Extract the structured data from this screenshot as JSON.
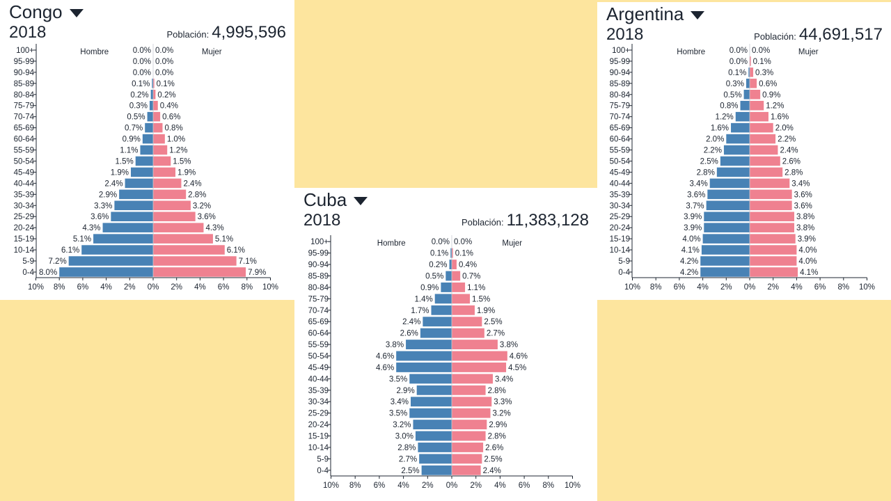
{
  "colors": {
    "male": "#4882b5",
    "female": "#ef8190",
    "background": "#fde59e",
    "axis": "#1c2430"
  },
  "labels": {
    "male": "Hombre",
    "female": "Mujer",
    "population": "Población:"
  },
  "ticks": [
    "10%",
    "8%",
    "6%",
    "4%",
    "2%",
    "0%",
    "2%",
    "4%",
    "6%",
    "8%",
    "10%"
  ],
  "panels": [
    {
      "country": "Congo",
      "year": "2018",
      "population": "4,995,596"
    },
    {
      "country": "Cuba",
      "year": "2018",
      "population": "11,383,128"
    },
    {
      "country": "Argentina",
      "year": "2018",
      "population": "44,691,517"
    }
  ],
  "chart_data": [
    {
      "type": "bar",
      "title": "Congo",
      "age_groups": [
        "100+",
        "95-99",
        "90-94",
        "85-89",
        "80-84",
        "75-79",
        "70-74",
        "65-69",
        "60-64",
        "55-59",
        "50-54",
        "45-49",
        "40-44",
        "35-39",
        "30-34",
        "25-29",
        "20-24",
        "15-19",
        "10-14",
        "5-9",
        "0-4"
      ],
      "series": [
        {
          "name": "Hombre",
          "values": [
            0.0,
            0.0,
            0.0,
            0.1,
            0.2,
            0.3,
            0.5,
            0.7,
            0.9,
            1.1,
            1.5,
            1.9,
            2.4,
            2.9,
            3.3,
            3.6,
            4.3,
            5.1,
            6.1,
            7.2,
            8.0
          ]
        },
        {
          "name": "Mujer",
          "values": [
            0.0,
            0.0,
            0.0,
            0.1,
            0.2,
            0.4,
            0.6,
            0.8,
            1.0,
            1.2,
            1.5,
            1.9,
            2.4,
            2.8,
            3.2,
            3.6,
            4.3,
            5.1,
            6.1,
            7.1,
            7.9
          ]
        }
      ],
      "xlim": [
        -10,
        10
      ]
    },
    {
      "type": "bar",
      "title": "Cuba",
      "age_groups": [
        "100+",
        "95-99",
        "90-94",
        "85-89",
        "80-84",
        "75-79",
        "70-74",
        "65-69",
        "60-64",
        "55-59",
        "50-54",
        "45-49",
        "40-44",
        "35-39",
        "30-34",
        "25-29",
        "20-24",
        "15-19",
        "10-14",
        "5-9",
        "0-4"
      ],
      "series": [
        {
          "name": "Hombre",
          "values": [
            0.0,
            0.1,
            0.2,
            0.5,
            0.9,
            1.4,
            1.7,
            2.4,
            2.6,
            3.8,
            4.6,
            4.6,
            3.5,
            2.9,
            3.4,
            3.5,
            3.2,
            3.0,
            2.8,
            2.7,
            2.5
          ]
        },
        {
          "name": "Mujer",
          "values": [
            0.0,
            0.1,
            0.4,
            0.7,
            1.1,
            1.5,
            1.9,
            2.5,
            2.7,
            3.8,
            4.6,
            4.5,
            3.4,
            2.8,
            3.3,
            3.2,
            2.9,
            2.8,
            2.6,
            2.5,
            2.4
          ]
        }
      ],
      "xlim": [
        -10,
        10
      ]
    },
    {
      "type": "bar",
      "title": "Argentina",
      "age_groups": [
        "100+",
        "95-99",
        "90-94",
        "85-89",
        "80-84",
        "75-79",
        "70-74",
        "65-69",
        "60-64",
        "55-59",
        "50-54",
        "45-49",
        "40-44",
        "35-39",
        "30-34",
        "25-29",
        "20-24",
        "15-19",
        "10-14",
        "5-9",
        "0-4"
      ],
      "series": [
        {
          "name": "Hombre",
          "values": [
            0.0,
            0.0,
            0.1,
            0.3,
            0.5,
            0.8,
            1.2,
            1.6,
            2.0,
            2.2,
            2.5,
            2.8,
            3.4,
            3.6,
            3.7,
            3.9,
            3.9,
            4.0,
            4.1,
            4.2,
            4.2
          ]
        },
        {
          "name": "Mujer",
          "values": [
            0.0,
            0.1,
            0.3,
            0.6,
            0.9,
            1.2,
            1.6,
            2.0,
            2.2,
            2.4,
            2.6,
            2.8,
            3.4,
            3.6,
            3.6,
            3.8,
            3.8,
            3.9,
            4.0,
            4.0,
            4.1
          ]
        }
      ],
      "xlim": [
        -10,
        10
      ]
    }
  ]
}
